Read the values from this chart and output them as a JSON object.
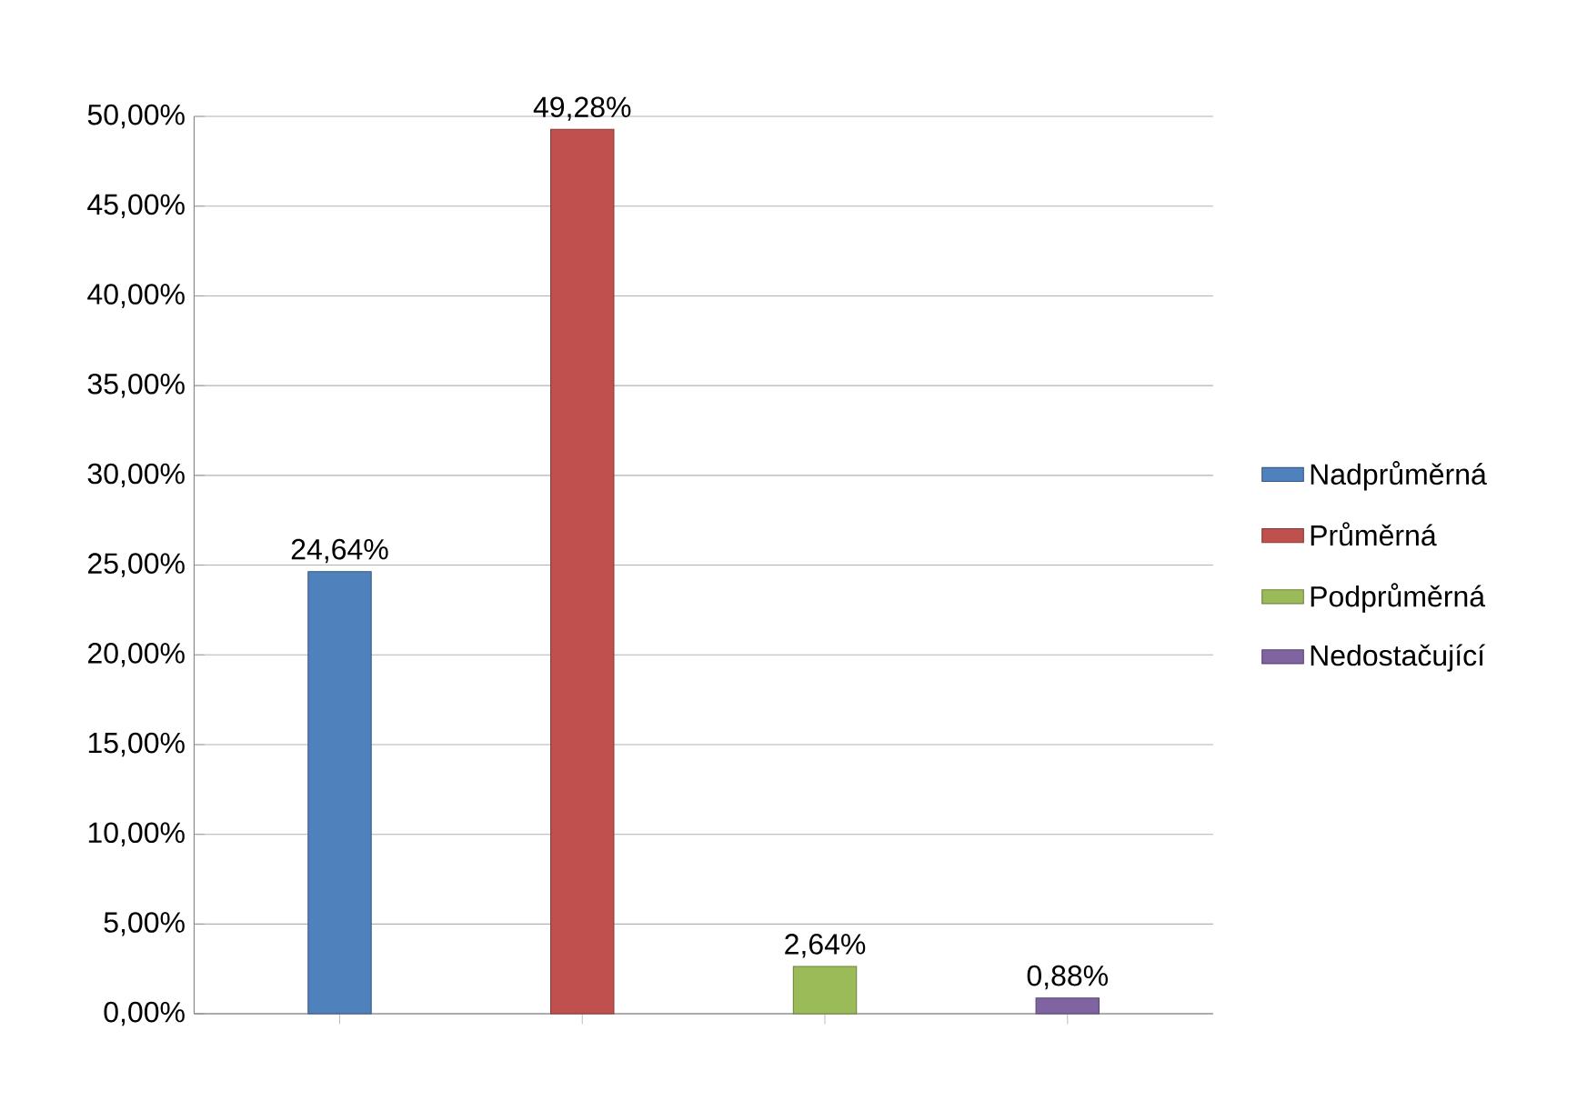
{
  "chart_data": {
    "type": "bar",
    "categories": [
      null,
      null,
      null,
      null
    ],
    "series": [
      {
        "name": "Nadprůměrná",
        "color": "#4f81bd",
        "values": [
          24.64,
          null,
          null,
          null
        ],
        "value_labels": [
          "24,64%",
          null,
          null,
          null
        ]
      },
      {
        "name": "Průměrná",
        "color": "#c0504d",
        "values": [
          null,
          49.28,
          null,
          null
        ],
        "value_labels": [
          null,
          "49,28%",
          null,
          null
        ]
      },
      {
        "name": "Podprůměrná",
        "color": "#9bbb59",
        "values": [
          null,
          null,
          2.64,
          null
        ],
        "value_labels": [
          null,
          null,
          "2,64%",
          null
        ]
      },
      {
        "name": "Nedostačující",
        "color": "#8064a2",
        "values": [
          null,
          null,
          null,
          0.88
        ],
        "value_labels": [
          null,
          null,
          null,
          "0,88%"
        ]
      }
    ],
    "ylim": [
      0,
      50
    ],
    "yticks": [
      {
        "value": 0,
        "label": "0,00%"
      },
      {
        "value": 5,
        "label": "5,00%"
      },
      {
        "value": 10,
        "label": "10,00%"
      },
      {
        "value": 15,
        "label": "15,00%"
      },
      {
        "value": 20,
        "label": "20,00%"
      },
      {
        "value": 25,
        "label": "25,00%"
      },
      {
        "value": 30,
        "label": "30,00%"
      },
      {
        "value": 35,
        "label": "35,00%"
      },
      {
        "value": 40,
        "label": "40,00%"
      },
      {
        "value": 45,
        "label": "45,00%"
      },
      {
        "value": 50,
        "label": "50,00%"
      }
    ],
    "grid": "y",
    "legend": "right"
  }
}
